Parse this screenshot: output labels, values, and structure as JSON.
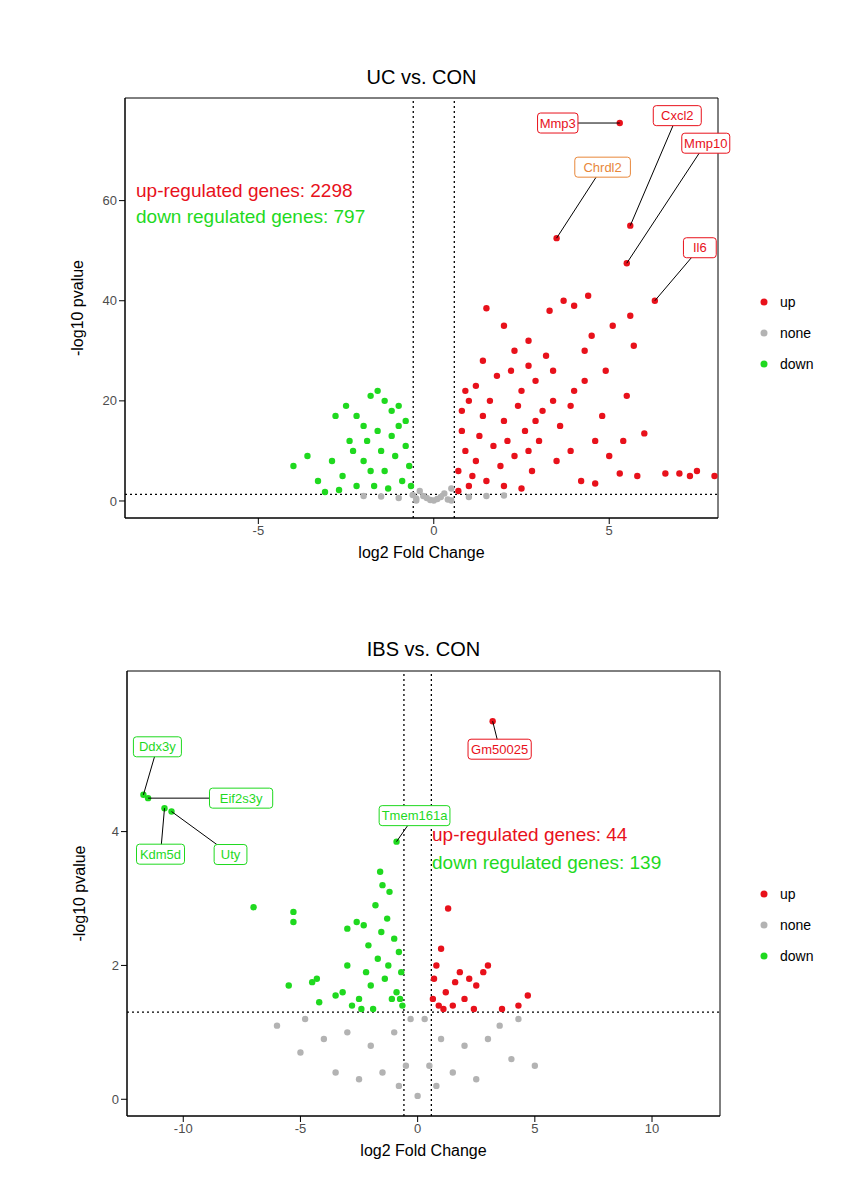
{
  "chart_data": [
    {
      "type": "scatter",
      "title": "UC vs. CON",
      "x_label": "log2 Fold Change",
      "y_label": "-log10 pvalue",
      "xlim": [
        -8.8,
        8.1
      ],
      "xticks": [
        -5,
        0,
        5
      ],
      "ylim": [
        -3.4,
        80.5
      ],
      "yticks": [
        0,
        20,
        40,
        60
      ],
      "grid": false,
      "reference_lines": {
        "x": [
          -0.585,
          0.585
        ],
        "y": [
          1.301
        ]
      },
      "texts": [
        {
          "text": "up-regulated genes: 2298",
          "color": "#e8111b"
        },
        {
          "text": "down regulated genes: 797",
          "color": "#1fd91f"
        }
      ],
      "annotations": [
        {
          "text": "Mmp3",
          "x": 5.3,
          "y": 75.5,
          "color": "#e8111b"
        },
        {
          "text": "Chrdl2",
          "x": 3.5,
          "y": 52.5,
          "color": "#e8873a"
        },
        {
          "text": "Cxcl2",
          "x": 5.6,
          "y": 55,
          "color": "#e8111b"
        },
        {
          "text": "Mmp10",
          "x": 5.5,
          "y": 47.5,
          "color": "#e8111b"
        },
        {
          "text": "Il6",
          "x": 6.3,
          "y": 40,
          "color": "#e8111b"
        }
      ],
      "series": [
        {
          "name": "up",
          "color": "#e8111b",
          "marker": "circle",
          "x": [
            5.3,
            3.5,
            5.6,
            5.5,
            6.3,
            4.4,
            4.0,
            3.3,
            3.7,
            1.5,
            5.6,
            5.1,
            5.7,
            4.3,
            4.5,
            3.2,
            2.7,
            6.0,
            7.0,
            7.5,
            7.3,
            8.0,
            8.2,
            6.6,
            5.8,
            5.3,
            4.2,
            4.6,
            3.9,
            3.6,
            4.8,
            4.0,
            3.4,
            2.9,
            2.5,
            2.2,
            1.8,
            1.2,
            1.0,
            0.8,
            1.4,
            2.0,
            2.6,
            3.0,
            3.5,
            2.8,
            2.3,
            1.7,
            1.3,
            0.9,
            0.7,
            1.1,
            1.5,
            2.0,
            2.5,
            0.7,
            1.0,
            1.9,
            2.4,
            3.1,
            1.6,
            1.2,
            0.8,
            2.1,
            2.7,
            0.9,
            1.4,
            2.3,
            2.0,
            2.7,
            3.4,
            2.9,
            3.9,
            4.3,
            4.9,
            5.5,
            4.6,
            5.0,
            5.4
          ],
          "values": [
            75.5,
            52.5,
            55,
            47.5,
            40,
            41,
            39,
            38,
            40,
            38.5,
            37,
            35,
            31,
            30,
            33,
            29,
            27,
            13.5,
            5.5,
            6,
            5,
            5,
            5,
            5.5,
            5,
            5.5,
            4,
            3.5,
            10,
            15,
            17,
            22,
            20,
            24,
            22,
            26,
            25,
            23,
            20,
            18,
            17,
            16,
            14,
            12,
            8,
            6,
            9,
            11,
            13,
            10,
            6,
            5,
            4,
            3,
            2.5,
            2,
            3,
            7,
            19,
            18,
            20,
            8,
            14,
            12,
            10,
            22,
            28,
            30,
            35,
            32,
            26,
            16,
            19,
            24,
            26,
            21,
            12,
            9,
            12
          ]
        },
        {
          "name": "none",
          "color": "#b3b3b3",
          "marker": "circle",
          "x": [
            -0.5,
            -0.3,
            -0.1,
            0.1,
            0.3,
            0.5,
            -0.4,
            0.2,
            0,
            -0.2,
            0.4,
            -0.6,
            1.0,
            -1.0,
            1.5,
            -1.5,
            2,
            -2,
            0.5,
            -0.5
          ],
          "values": [
            0.5,
            1,
            0.2,
            0.4,
            1.5,
            2.5,
            2,
            0.8,
            0.1,
            0.6,
            0.3,
            1.2,
            0.8,
            0.6,
            1.0,
            0.9,
            1.1,
            1,
            0.1,
            0.1
          ]
        },
        {
          "name": "down",
          "color": "#1fd91f",
          "marker": "circle",
          "x": [
            -4.0,
            -3.6,
            -3.1,
            -2.8,
            -2.5,
            -2.2,
            -1.8,
            -1.6,
            -1.4,
            -1.2,
            -2.0,
            -2.4,
            -2.9,
            -2.6,
            -2.2,
            -1.8,
            -1.5,
            -1.2,
            -1.0,
            -0.8,
            -0.7,
            -0.9,
            -1.3,
            -1.7,
            -2.0,
            -1.1,
            -0.8,
            -1.4,
            -2.3,
            -1.9,
            -0.65,
            -3.3,
            -2.7,
            -1.6,
            -1.0
          ],
          "values": [
            7,
            9,
            1.8,
            17,
            19,
            17,
            21,
            22,
            20,
            18,
            15,
            12,
            8,
            5,
            3,
            6,
            10,
            13,
            15,
            11,
            7,
            4,
            2.5,
            3,
            8,
            9,
            16,
            6,
            10,
            12,
            3,
            4,
            2.2,
            14,
            19
          ]
        }
      ]
    },
    {
      "type": "scatter",
      "title": "IBS vs. CON",
      "x_label": "log2 Fold Change",
      "y_label": "-log10 pvalue",
      "xlim": [
        -12.4,
        12.9
      ],
      "xticks": [
        -10,
        -5,
        0,
        5,
        10
      ],
      "ylim": [
        -0.25,
        6.4
      ],
      "yticks": [
        0,
        2,
        4
      ],
      "grid": false,
      "reference_lines": {
        "x": [
          -0.585,
          0.585
        ],
        "y": [
          1.301
        ]
      },
      "texts": [
        {
          "text": "up-regulated genes: 44",
          "color": "#e8111b"
        },
        {
          "text": "down regulated genes: 139",
          "color": "#1fd91f"
        }
      ],
      "annotations": [
        {
          "text": "Ddx3y",
          "x": -11.7,
          "y": 4.55,
          "color": "#1fd91f"
        },
        {
          "text": "Eif2s3y",
          "x": -11.5,
          "y": 4.5,
          "color": "#1fd91f"
        },
        {
          "text": "Kdm5d",
          "x": -10.8,
          "y": 4.35,
          "color": "#1fd91f"
        },
        {
          "text": "Uty",
          "x": -10.5,
          "y": 4.3,
          "color": "#1fd91f"
        },
        {
          "text": "Tmem161a",
          "x": -0.9,
          "y": 3.85,
          "color": "#1fd91f"
        },
        {
          "text": "Gm50025",
          "x": 3.2,
          "y": 5.65,
          "color": "#e8111b"
        }
      ],
      "series": [
        {
          "name": "up",
          "color": "#e8111b",
          "marker": "circle",
          "x": [
            3.2,
            1.3,
            1.0,
            0.8,
            0.7,
            1.2,
            1.5,
            1.8,
            2.2,
            2.5,
            2.8,
            3.0,
            2.0,
            3.6,
            4.7,
            4.3,
            1.1,
            0.65,
            0.9,
            1.6,
            2.4
          ],
          "values": [
            5.65,
            2.85,
            2.25,
            2.0,
            1.8,
            1.6,
            1.4,
            1.9,
            1.8,
            1.7,
            1.9,
            2.0,
            1.5,
            1.35,
            1.55,
            1.4,
            1.35,
            1.5,
            1.4,
            1.75,
            1.35
          ]
        },
        {
          "name": "none",
          "color": "#b3b3b3",
          "marker": "circle",
          "x": [
            -3,
            -2,
            -1,
            -0.5,
            0,
            0.5,
            1,
            2,
            3,
            4,
            5,
            -4,
            -5,
            -6,
            -1.5,
            1.5,
            -0.3,
            0.3,
            -2.5,
            2.5,
            0.8,
            -0.8,
            3.5,
            -3.5,
            4.3,
            -4.8
          ],
          "values": [
            1.0,
            0.8,
            1.0,
            0.5,
            0.05,
            0.5,
            0.9,
            0.8,
            0.9,
            0.6,
            0.5,
            0.9,
            0.7,
            1.1,
            0.4,
            0.4,
            1.2,
            1.2,
            0.3,
            0.3,
            0.2,
            0.2,
            1.1,
            0.4,
            1.2,
            1.2
          ]
        },
        {
          "name": "down",
          "color": "#1fd91f",
          "marker": "circle",
          "x": [
            -11.7,
            -11.5,
            -10.8,
            -10.5,
            -0.9,
            -7,
            -5.3,
            -5.3,
            -4.3,
            -4.5,
            -5.5,
            -4.2,
            -3.5,
            -3.0,
            -2.6,
            -2.3,
            -2.1,
            -1.8,
            -1.6,
            -1.5,
            -1.2,
            -1.3,
            -1.0,
            -0.8,
            -0.7,
            -0.9,
            -1.1,
            -1.4,
            -1.7,
            -2.0,
            -2.5,
            -2.8,
            -3.2,
            -2.2,
            -1.9,
            -0.65,
            -0.75,
            -1.25,
            -1.55,
            -3.0,
            -2.4
          ],
          "values": [
            4.55,
            4.5,
            4.35,
            4.3,
            3.85,
            2.87,
            2.8,
            2.65,
            1.8,
            1.75,
            1.7,
            1.45,
            1.55,
            2.0,
            2.65,
            2.6,
            2.3,
            2.9,
            3.4,
            3.2,
            3.1,
            2.7,
            2.4,
            2.2,
            1.9,
            1.6,
            1.5,
            1.8,
            2.1,
            1.7,
            1.5,
            1.4,
            1.6,
            1.9,
            1.35,
            1.4,
            1.5,
            2.0,
            2.5,
            2.55,
            1.35
          ]
        }
      ]
    }
  ]
}
